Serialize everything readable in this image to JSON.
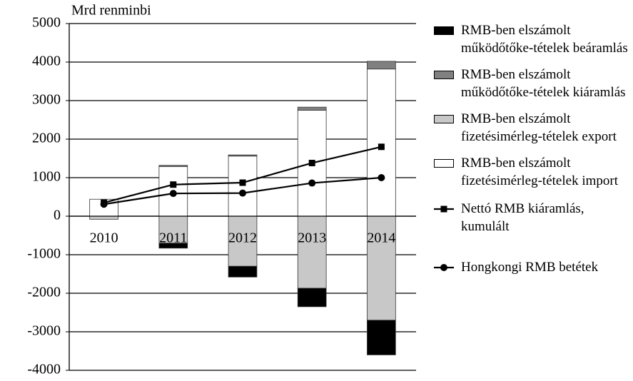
{
  "chart_data": {
    "type": "bar",
    "y_label": "Mrd renminbi",
    "categories": [
      "2010",
      "2011",
      "2012",
      "2013",
      "2014"
    ],
    "ylim": [
      -4000,
      5000
    ],
    "yticks": [
      -4000,
      -3000,
      -2000,
      -1000,
      0,
      1000,
      2000,
      3000,
      4000,
      5000
    ],
    "grid": true,
    "legend": "right",
    "series": [
      {
        "name": "RMB-ben elszámolt működőtőke-tételek beáramlás",
        "type": "bar",
        "color": "#000000",
        "values": [
          0,
          -130,
          -280,
          -480,
          -900
        ]
      },
      {
        "name": "RMB-ben elszámolt működőtőke-tételek kiáramlás",
        "type": "bar",
        "color": "#808080",
        "values": [
          0,
          30,
          30,
          80,
          200
        ]
      },
      {
        "name": "RMB-ben elszámolt fizetésimérleg-tételek export",
        "type": "bar",
        "color": "#c8c8c8",
        "values": [
          -80,
          -700,
          -1300,
          -1870,
          -2700
        ]
      },
      {
        "name": "RMB-ben elszámolt fizetésimérleg-tételek import",
        "type": "bar",
        "color": "#ffffff",
        "values": [
          440,
          1290,
          1560,
          2750,
          3820
        ]
      },
      {
        "name": "Nettó RMB kiáramlás, kumulált",
        "type": "line",
        "marker": "square",
        "color": "#000000",
        "values": [
          350,
          820,
          870,
          1380,
          1800
        ]
      },
      {
        "name": "Hongkongi RMB betétek",
        "type": "line",
        "marker": "circle",
        "color": "#000000",
        "values": [
          310,
          590,
          600,
          860,
          1000
        ]
      }
    ]
  }
}
